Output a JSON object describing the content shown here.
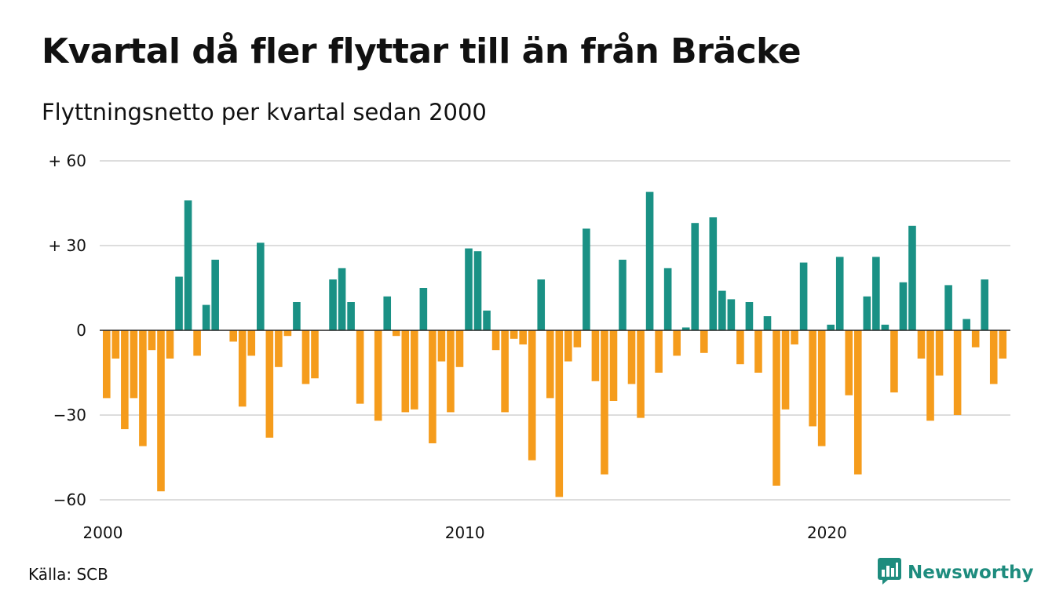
{
  "title": "Kvartal då fler flyttar till än från Bräcke",
  "subtitle": "Flyttningsnetto per kvartal sedan 2000",
  "source": "Källa: SCB",
  "brand": {
    "name": "Newsworthy",
    "icon": "newsworthy-logo-icon",
    "color": "#1e8c7e"
  },
  "colors": {
    "positive": "#1a9185",
    "negative": "#f59c1c",
    "grid": "#dddddd",
    "zero_line": "#222222"
  },
  "chart_data": {
    "type": "bar",
    "x_start": "2000 Q1",
    "x_ticks": [
      "2000",
      "2010",
      "2020"
    ],
    "y_ticks": [
      "+ 60",
      "+ 30",
      "0",
      "−30",
      "−60"
    ],
    "y_tick_values": [
      60,
      30,
      0,
      -30,
      -60
    ],
    "ylim": [
      -60,
      60
    ],
    "grid": true,
    "values": [
      -24,
      -10,
      -35,
      -24,
      -41,
      -7,
      -57,
      -10,
      19,
      46,
      -9,
      9,
      25,
      0,
      -4,
      -27,
      -9,
      31,
      -38,
      -13,
      -2,
      10,
      -19,
      -17,
      0,
      18,
      22,
      10,
      -26,
      0,
      -32,
      12,
      -2,
      -29,
      -28,
      15,
      -40,
      -11,
      -29,
      -13,
      29,
      28,
      7,
      -7,
      -29,
      -3,
      -5,
      -46,
      18,
      -24,
      -59,
      -11,
      -6,
      36,
      -18,
      -51,
      -25,
      25,
      -19,
      -31,
      49,
      -15,
      22,
      -9,
      1,
      38,
      -8,
      40,
      14,
      11,
      -12,
      10,
      -15,
      5,
      -55,
      -28,
      -5,
      24,
      -34,
      -41,
      2,
      26,
      -23,
      -51,
      12,
      26,
      2,
      -22,
      17,
      37,
      -10,
      -32,
      -16,
      16,
      -30,
      4,
      -6,
      18,
      -19,
      -10
    ]
  }
}
